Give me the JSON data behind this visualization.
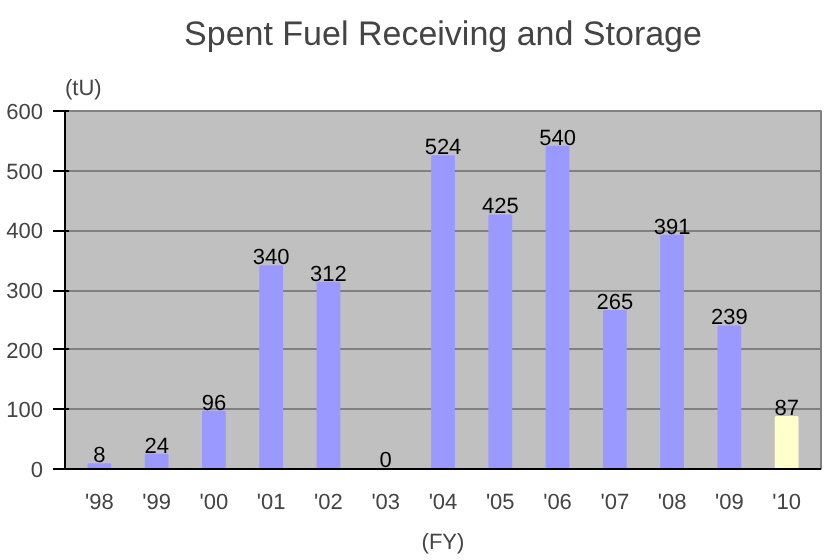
{
  "chart_data": {
    "type": "bar",
    "title": "Spent Fuel Receiving and Storage",
    "xlabel": "(FY)",
    "ylabel": "(tU)",
    "categories": [
      "'98",
      "'99",
      "'00",
      "'01",
      "'02",
      "'03",
      "'04",
      "'05",
      "'06",
      "'07",
      "'08",
      "'09",
      "'10"
    ],
    "values": [
      8,
      24,
      96,
      340,
      312,
      0,
      524,
      425,
      540,
      265,
      391,
      239,
      87
    ],
    "colors": [
      "#9999ff",
      "#9999ff",
      "#9999ff",
      "#9999ff",
      "#9999ff",
      "#9999ff",
      "#9999ff",
      "#9999ff",
      "#9999ff",
      "#9999ff",
      "#9999ff",
      "#9999ff",
      "#ffffcc"
    ],
    "ylim": [
      0,
      600
    ],
    "yticks": [
      0,
      100,
      200,
      300,
      400,
      500,
      600
    ],
    "grid": "y",
    "data_labels": true
  }
}
